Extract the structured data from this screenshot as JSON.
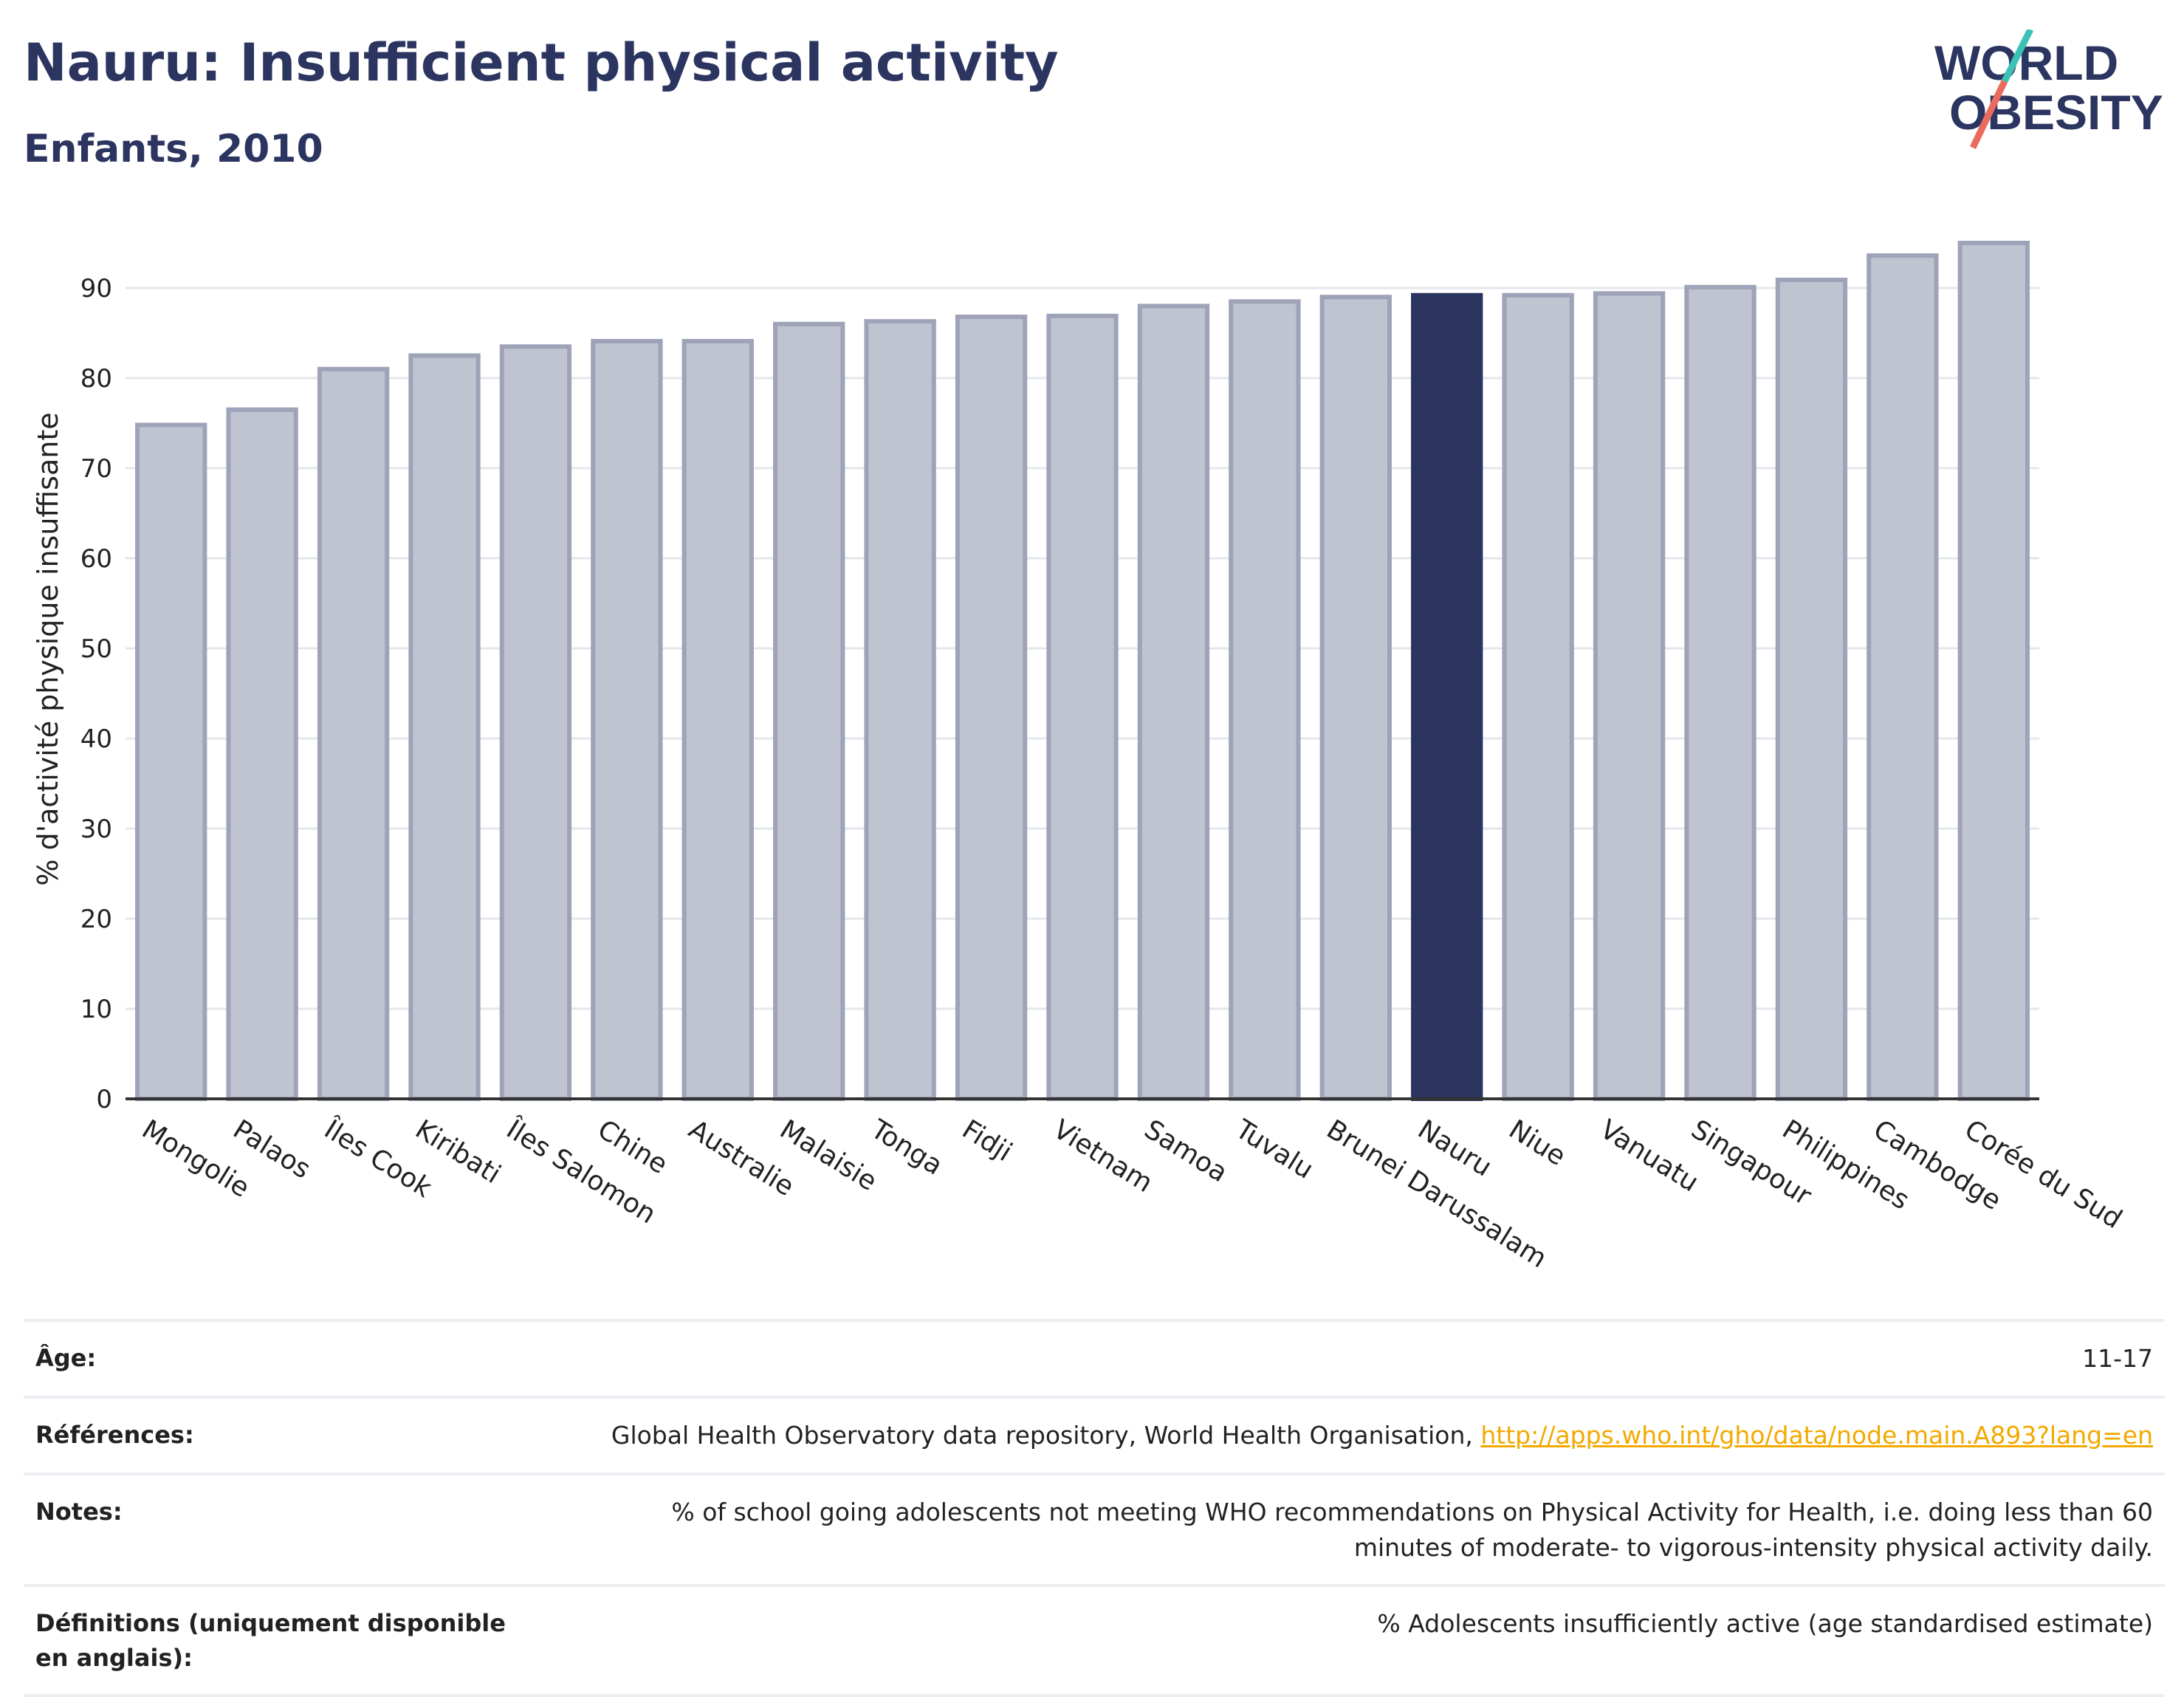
{
  "header": {
    "title": "Nauru: Insufficient physical activity",
    "subtitle": "Enfants, 2010"
  },
  "logo": {
    "line1": "WORLD",
    "line2": "OBESITY"
  },
  "colors": {
    "bar": "#c0c3d0",
    "bar_edge": "#9ea3b8",
    "highlight": "#2b3560",
    "grid": "#e6e7ec",
    "axis": "#333333",
    "link": "#f2a900"
  },
  "chart_data": {
    "type": "bar",
    "ylabel": "% d'activité physique insuffisante",
    "ylim": [
      0,
      100
    ],
    "yticks": [
      0,
      10,
      20,
      30,
      40,
      50,
      60,
      70,
      80,
      90
    ],
    "grid": true,
    "highlight": "Nauru",
    "categories": [
      "Mongolie",
      "Palaos",
      "Îles Cook",
      "Kiribati",
      "Îles Salomon",
      "Chine",
      "Australie",
      "Malaisie",
      "Tonga",
      "Fidji",
      "Vietnam",
      "Samoa",
      "Tuvalu",
      "Brunei Darussalam",
      "Nauru",
      "Niue",
      "Vanuatu",
      "Singapour",
      "Philippines",
      "Cambodge",
      "Corée du Sud"
    ],
    "values": [
      74.8,
      76.5,
      81.0,
      82.5,
      83.5,
      84.1,
      84.1,
      86.0,
      86.3,
      86.8,
      86.9,
      88.0,
      88.5,
      89.0,
      89.2,
      89.2,
      89.4,
      90.1,
      90.9,
      93.6,
      95.0
    ]
  },
  "info": {
    "age_label": "Âge:",
    "age_value": "11-17",
    "ref_label": "Références:",
    "ref_text": "Global Health Observatory data repository, World Health Organisation, ",
    "ref_link": "http://apps.who.int/gho/data/node.main.A893?lang=en",
    "notes_label": "Notes:",
    "notes_value": "% of school going adolescents not meeting WHO recommendations on Physical Activity for Health, i.e. doing less than 60 minutes of moderate- to vigorous-intensity physical activity daily.",
    "def_label": "Définitions (uniquement disponible en anglais):",
    "def_value": "% Adolescents insufficiently active (age standardised estimate)"
  }
}
